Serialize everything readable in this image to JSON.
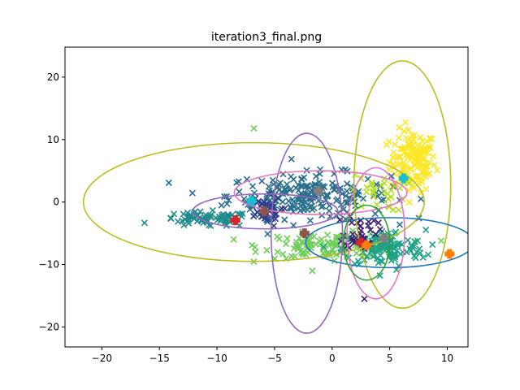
{
  "chart_data": {
    "type": "scatter",
    "title": "iteration3_final.png",
    "xlabel": "",
    "ylabel": "",
    "xlim": [
      -23.2,
      11.8
    ],
    "ylim": [
      -23.2,
      24.8
    ],
    "x_ticks": [
      -20,
      -15,
      -10,
      -5,
      0,
      5,
      10
    ],
    "y_ticks": [
      -20,
      -10,
      0,
      10,
      20
    ],
    "x_tick_labels": [
      "−20",
      "−15",
      "−10",
      "−5",
      "0",
      "5",
      "10"
    ],
    "y_tick_labels": [
      "−20",
      "−10",
      "0",
      "10",
      "20"
    ],
    "grid": false,
    "clusters": [
      {
        "color": "#fde725",
        "center": [
          7.0,
          6.5
        ],
        "spread": [
          1.0,
          2.5
        ],
        "n": 140,
        "centroid": [
          6.2,
          3.8
        ],
        "centroid_color": "#17becf"
      },
      {
        "color": "#2a6f8e",
        "center": [
          -2.0,
          1.0
        ],
        "spread": [
          3.5,
          1.8
        ],
        "n": 230,
        "centroid": [
          -1.2,
          1.8
        ],
        "centroid_color": "#7f7f7f"
      },
      {
        "color": "#1f8a8a",
        "center": [
          -11.0,
          -2.8
        ],
        "spread": [
          2.0,
          0.6
        ],
        "n": 70,
        "centroid": [
          -8.4,
          -2.9
        ],
        "centroid_color": "#d62728"
      },
      {
        "color": "#6ece58",
        "center": [
          0.0,
          -7.0
        ],
        "spread": [
          3.0,
          1.0
        ],
        "n": 120,
        "centroid": [
          -2.4,
          -5.0
        ],
        "centroid_color": "#8c564b"
      },
      {
        "color": "#1fa187",
        "center": [
          4.5,
          -7.5
        ],
        "spread": [
          1.8,
          1.5
        ],
        "n": 130,
        "centroid": [
          4.5,
          -5.8
        ],
        "centroid_color": "#7f7f7f"
      },
      {
        "color": "#3b1f6e",
        "center": [
          2.5,
          -4.5
        ],
        "spread": [
          0.7,
          1.5
        ],
        "n": 40,
        "centroid": [
          2.5,
          -6.5
        ],
        "centroid_color": "#d62728"
      },
      {
        "color": "#2d3f8c",
        "center": [
          -6.0,
          -1.5
        ],
        "spread": [
          0.8,
          1.2
        ],
        "n": 40,
        "centroid": [
          -5.9,
          -1.5
        ],
        "centroid_color": "#8c564b"
      },
      {
        "color": "#b5de2b",
        "center": [
          4.0,
          1.5
        ],
        "spread": [
          1.2,
          1.5
        ],
        "n": 30,
        "centroid": [
          3.0,
          -6.9
        ],
        "centroid_color": "#ff7f0e"
      }
    ],
    "outliers": [
      {
        "x": -6.8,
        "y": 11.8,
        "color": "#6ece58"
      },
      {
        "x": 2.8,
        "y": -15.5,
        "color": "#3b1f6e"
      },
      {
        "x": 10.2,
        "y": -8.3,
        "color": "#ff7f0e"
      },
      {
        "x": -7.0,
        "y": 0.2,
        "color": "#17becf"
      }
    ],
    "ellipses": [
      {
        "cx": -6.8,
        "cy": 0.0,
        "rx": 14.8,
        "ry": 9.5,
        "color": "#bcbd22"
      },
      {
        "cx": 6.1,
        "cy": 2.8,
        "rx": 4.2,
        "ry": 19.8,
        "color": "#bcbd22"
      },
      {
        "cx": -2.2,
        "cy": -5.0,
        "rx": 3.1,
        "ry": 16.0,
        "color": "#9467bd"
      },
      {
        "cx": 5.0,
        "cy": -6.5,
        "rx": 7.3,
        "ry": 4.0,
        "color": "#1f77b4"
      },
      {
        "cx": -5.8,
        "cy": -1.5,
        "rx": 6.3,
        "ry": 2.8,
        "color": "#9467bd"
      },
      {
        "cx": -1.0,
        "cy": 1.5,
        "rx": 7.5,
        "ry": 3.5,
        "color": "#e377c2"
      },
      {
        "cx": 3.8,
        "cy": -5.0,
        "rx": 2.5,
        "ry": 10.5,
        "color": "#e377c2"
      },
      {
        "cx": 3.0,
        "cy": -6.5,
        "rx": 2.0,
        "ry": 6.0,
        "color": "#2ca02c"
      }
    ]
  }
}
